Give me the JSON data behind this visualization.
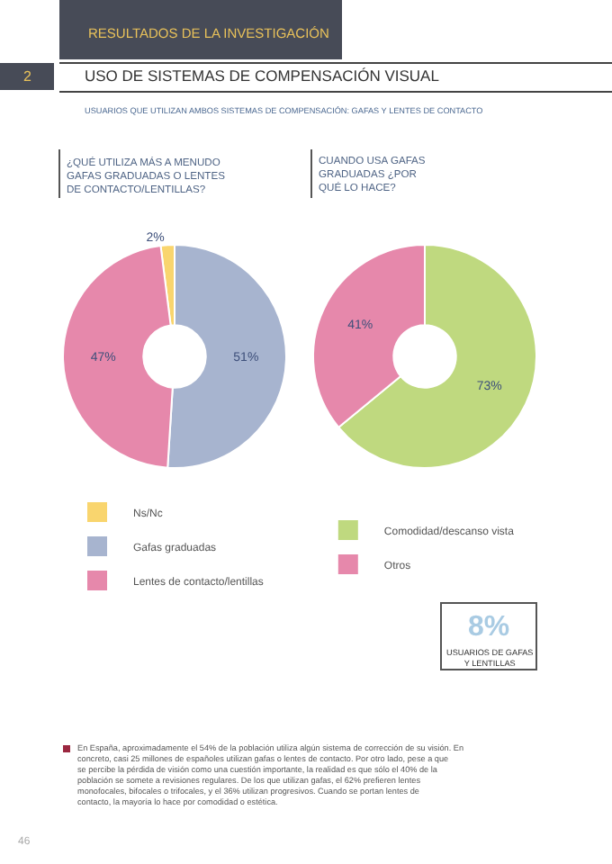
{
  "chart_data": [
    {
      "type": "donut",
      "title": "¿QUÉ UTILIZA MÁS A MENUDO GAFAS GRADUADAS O LENTES DE CONTACTO/LENTILLAS?",
      "categories": [
        "Ns/Nc",
        "Gafas graduadas",
        "Lentes de contacto/lentillas"
      ],
      "values": [
        2,
        51,
        47
      ],
      "colors": [
        "#f9d56e",
        "#a7b4cf",
        "#e688ab"
      ],
      "value_labels": [
        "2%",
        "51%",
        "47%"
      ],
      "legend": "bottom left"
    },
    {
      "type": "donut",
      "title": "CUANDO USA GAFAS GRADUADAS ¿POR QUÉ LO HACE?",
      "categories": [
        "Comodidad/descanso vista",
        "Otros"
      ],
      "values": [
        73,
        41
      ],
      "colors": [
        "#bfd97f",
        "#e688ab"
      ],
      "value_labels": [
        "73%",
        "41%"
      ],
      "legend": "bottom right"
    },
    {
      "type": "other",
      "title": "USO DE SISTEMAS DE COMPENSACIÓN VISUAL",
      "subtitle": "USUARIOS QUE UTILIZAN AMBOS SISTEMAS DE COMPENSACIÓN: GAFAS Y LENTES DE CONTACTO",
      "annotations": [
        "RESULTADOS DE LA INVESTIGACIÓN",
        "2",
        "8%",
        "USUARIOS DE GAFAS Y LENTILLAS",
        "En España, aproximadamente el 54% de la población utiliza algún sistema de corrección de su visión. En concreto, casi 25 millones de españoles utilizan gafas o lentes de contacto. Por otro lado, pese a que se percibe la pérdida de visión como una cuestión importante, la realidad es que sólo el 40% de la población se somete a revisiones regulares. De los que utilizan gafas, el 62% prefieren lentes monofocales, bifocales o trifocales, y el 36% utilizan progresivos. Cuando se portan lentes de contacto, la mayoría lo hace por comodidad o estética.",
        "46"
      ]
    }
  ]
}
